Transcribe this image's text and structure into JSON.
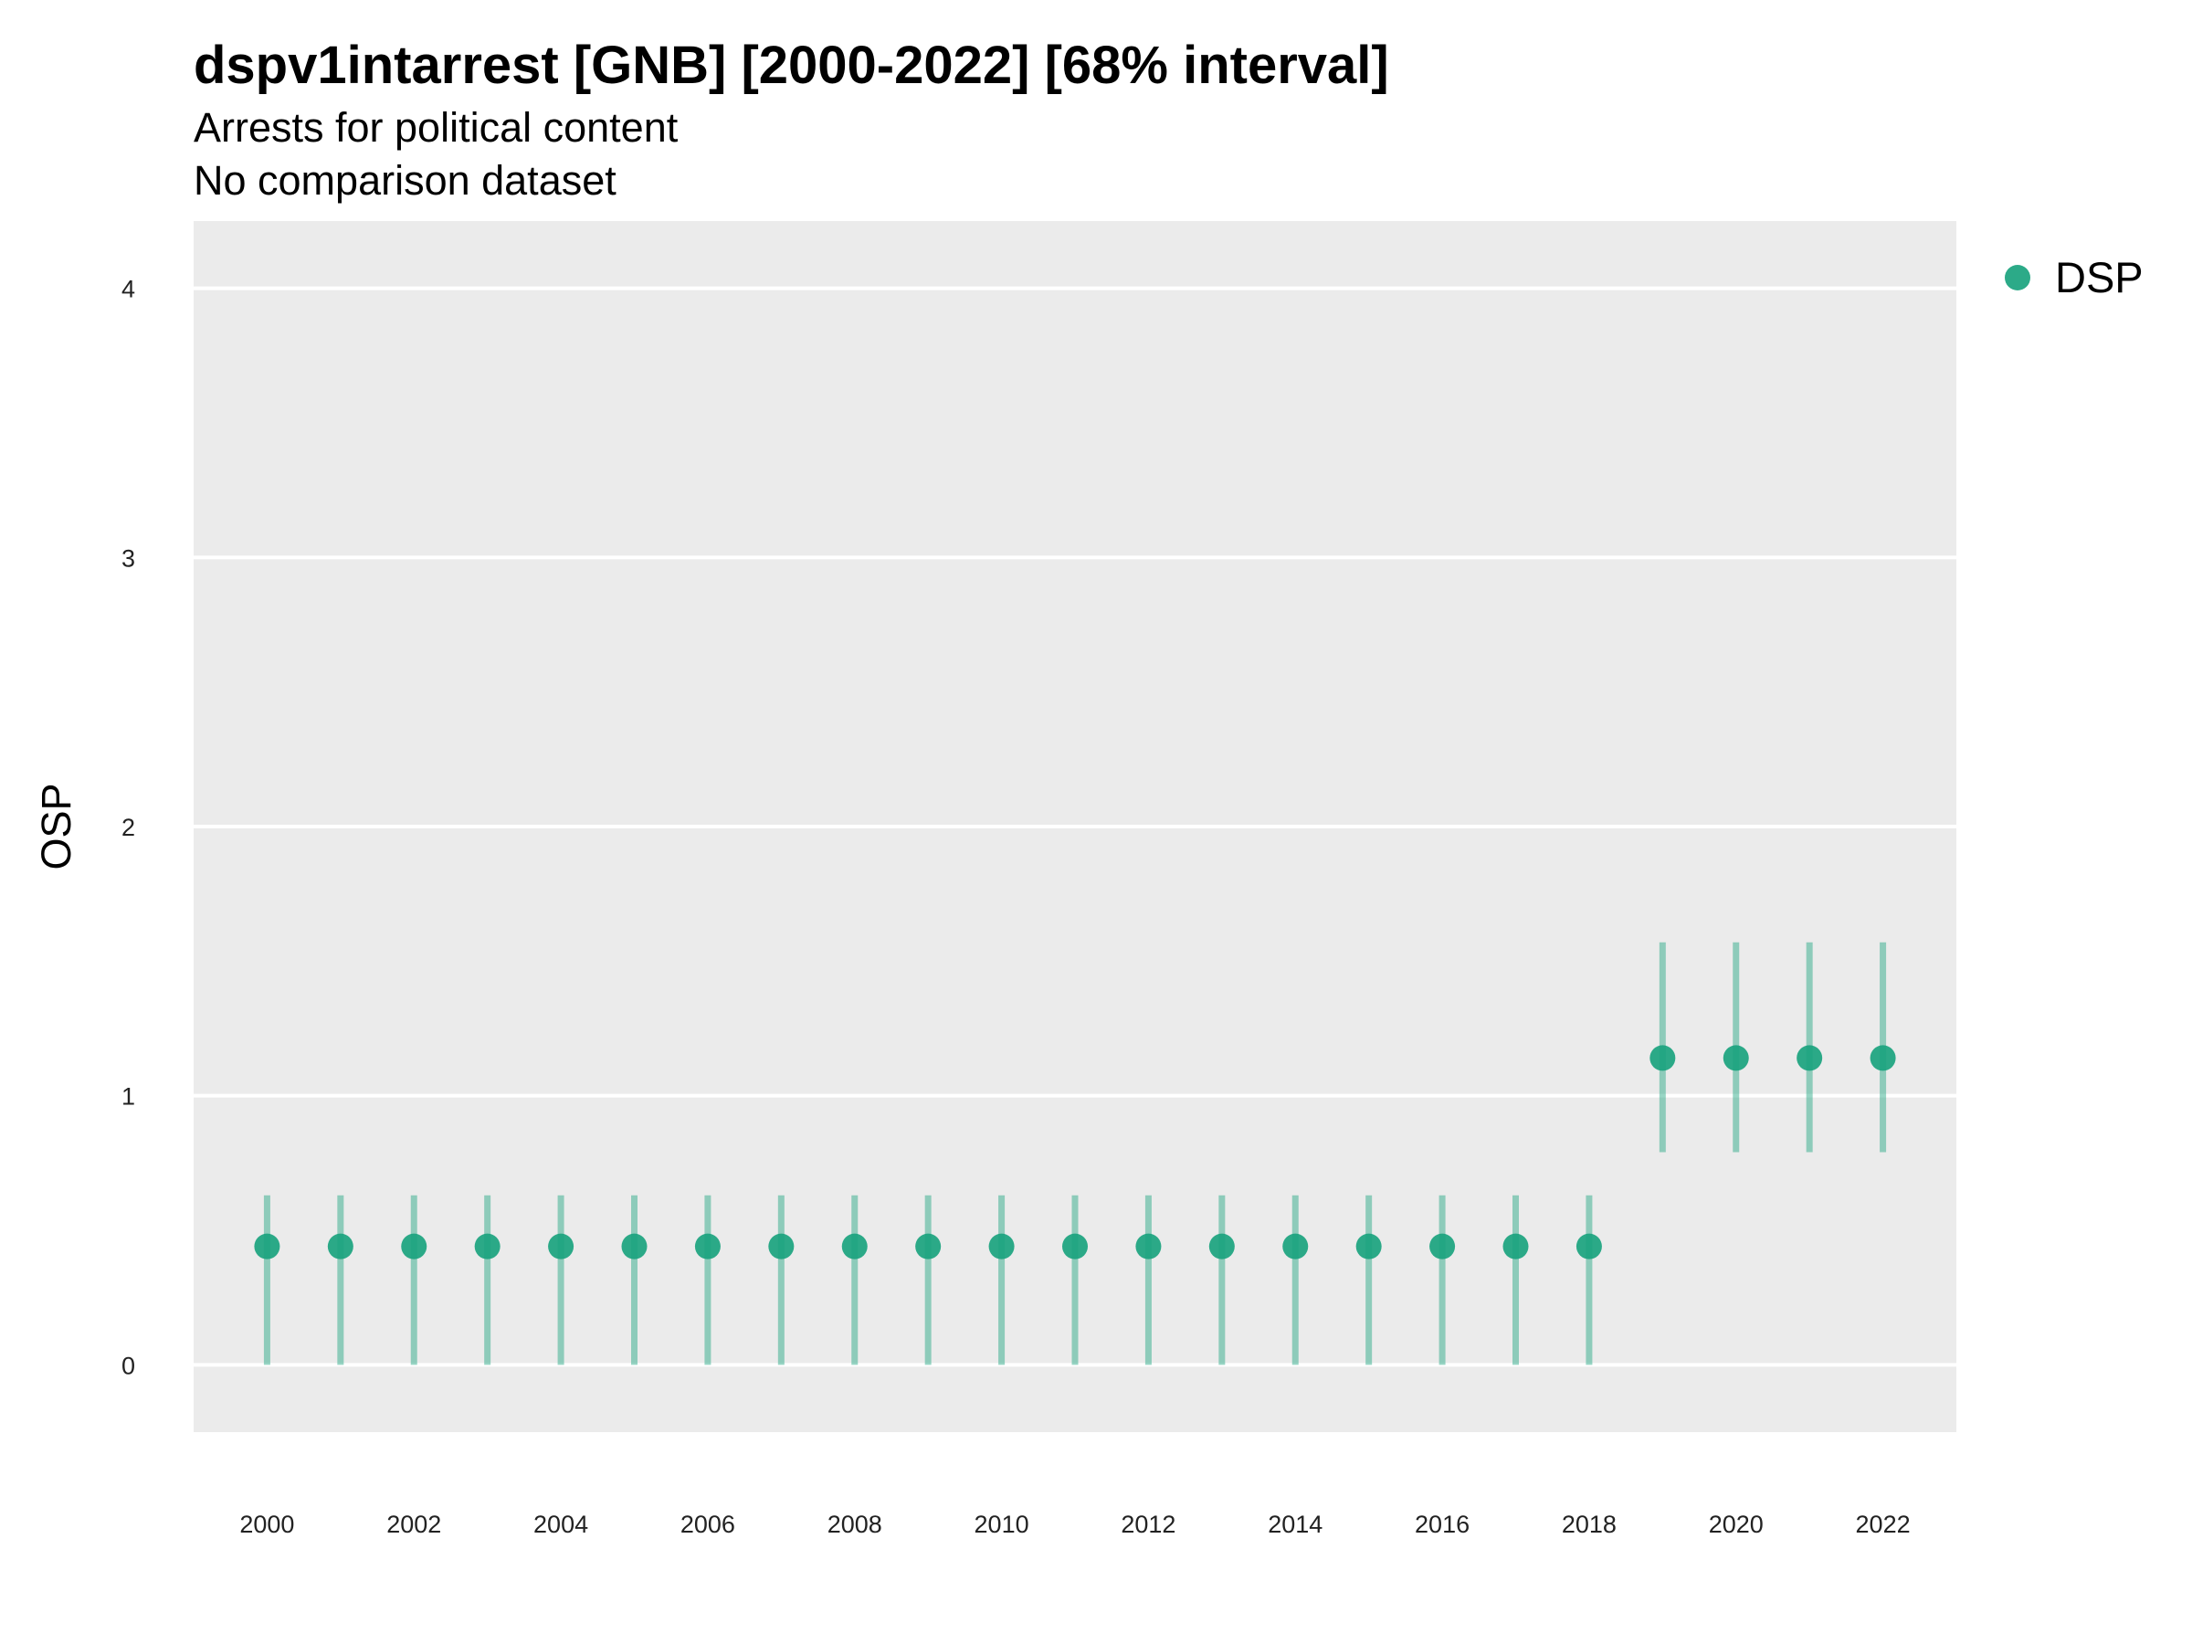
{
  "chart_data": {
    "type": "scatter",
    "title": "dspv1intarrest [GNB] [2000-2022] [68% interval]",
    "subtitle": "Arrests for political content",
    "caption": "No comparison dataset",
    "ylabel": "OSP",
    "xlabel": "",
    "ylim": [
      -0.25,
      4.25
    ],
    "xlim": [
      1999,
      2023
    ],
    "yticks": [
      0,
      1,
      2,
      3,
      4
    ],
    "xticks": [
      2000,
      2002,
      2004,
      2006,
      2008,
      2010,
      2012,
      2014,
      2016,
      2018,
      2020,
      2022
    ],
    "grid": true,
    "legend_position": "top-right",
    "series": [
      {
        "name": "DSP",
        "color": "#1aa37e",
        "x": [
          2000,
          2001,
          2002,
          2003,
          2004,
          2005,
          2006,
          2007,
          2008,
          2009,
          2010,
          2011,
          2012,
          2013,
          2014,
          2015,
          2016,
          2017,
          2018,
          2019,
          2020,
          2021,
          2022
        ],
        "y": [
          0.44,
          0.44,
          0.44,
          0.44,
          0.44,
          0.44,
          0.44,
          0.44,
          0.44,
          0.44,
          0.44,
          0.44,
          0.44,
          0.44,
          0.44,
          0.44,
          0.44,
          0.44,
          0.44,
          1.14,
          1.14,
          1.14,
          1.14
        ],
        "lower": [
          0.0,
          0.0,
          0.0,
          0.0,
          0.0,
          0.0,
          0.0,
          0.0,
          0.0,
          0.0,
          0.0,
          0.0,
          0.0,
          0.0,
          0.0,
          0.0,
          0.0,
          0.0,
          0.0,
          0.79,
          0.79,
          0.79,
          0.79
        ],
        "upper": [
          0.63,
          0.63,
          0.63,
          0.63,
          0.63,
          0.63,
          0.63,
          0.63,
          0.63,
          0.63,
          0.63,
          0.63,
          0.63,
          0.63,
          0.63,
          0.63,
          0.63,
          0.63,
          0.63,
          1.57,
          1.57,
          1.57,
          1.57
        ]
      }
    ]
  }
}
